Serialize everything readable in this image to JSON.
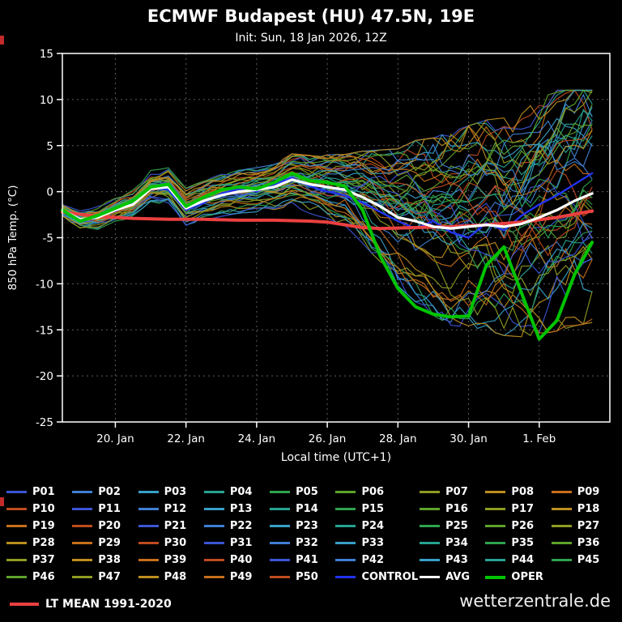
{
  "header": {
    "title": "ECMWF Budapest (HU) 47.5N, 19E",
    "subtitle": "Init: Sun, 18 Jan 2026, 12Z"
  },
  "watermark": "wetterzentrale.de",
  "chart_data": {
    "type": "line",
    "title": "ECMWF Budapest (HU) 47.5N, 19E",
    "subtitle": "Init: Sun, 18 Jan 2026, 12Z",
    "xlabel": "Local time (UTC+1)",
    "ylabel": "850 hPa Temp. (°C)",
    "ylim": [
      -25,
      15
    ],
    "yticks": [
      15,
      10,
      5,
      0,
      -5,
      -10,
      -15,
      -20,
      -25
    ],
    "xlim_days": [
      0,
      15.5
    ],
    "xticks": [
      {
        "t": 1.5,
        "label": "20. Jan"
      },
      {
        "t": 3.5,
        "label": "22. Jan"
      },
      {
        "t": 5.5,
        "label": "24. Jan"
      },
      {
        "t": 7.5,
        "label": "26. Jan"
      },
      {
        "t": 9.5,
        "label": "28. Jan"
      },
      {
        "t": 11.5,
        "label": "30. Jan"
      },
      {
        "t": 13.5,
        "label": "1. Feb"
      }
    ],
    "grid": "dashed",
    "series": {
      "avg": {
        "name": "AVG",
        "color": "#ffffff",
        "width": 3.2,
        "x": [
          0,
          0.5,
          1,
          1.5,
          2,
          2.5,
          3,
          3.5,
          4,
          4.5,
          5,
          5.5,
          6,
          6.5,
          7,
          7.5,
          8,
          8.5,
          9,
          9.5,
          10,
          10.5,
          11,
          11.5,
          12,
          12.5,
          13,
          13.5,
          14,
          14.5,
          15
        ],
        "values": [
          -2,
          -3,
          -2.8,
          -2,
          -1.4,
          0.3,
          0.5,
          -1.8,
          -1,
          -0.4,
          0,
          0.2,
          0.5,
          1.3,
          0.8,
          0.5,
          0.2,
          -0.6,
          -1.6,
          -2.8,
          -3.2,
          -3.8,
          -4,
          -3.8,
          -3.6,
          -3.8,
          -3.5,
          -2.8,
          -2,
          -1,
          -0.2
        ]
      },
      "oper": {
        "name": "OPER",
        "color": "#00c400",
        "width": 4,
        "x": [
          0,
          0.5,
          1,
          1.5,
          2,
          2.5,
          3,
          3.5,
          4,
          4.5,
          5,
          5.5,
          6,
          6.5,
          7,
          7.5,
          8,
          8.5,
          9,
          9.5,
          10,
          10.5,
          11,
          11.5,
          12,
          12.5,
          13,
          13.5,
          14,
          14.5,
          15
        ],
        "values": [
          -2,
          -3.2,
          -2.6,
          -1.8,
          -1,
          0.5,
          0.8,
          -1.6,
          -0.6,
          0.2,
          0.5,
          0.3,
          1,
          2,
          1.2,
          1,
          0.6,
          -2,
          -7,
          -10.5,
          -12.5,
          -13.3,
          -13.6,
          -13.5,
          -8,
          -6,
          -11,
          -16,
          -14,
          -9,
          -5.5
        ]
      },
      "control": {
        "name": "CONTROL",
        "color": "#2233ee",
        "width": 2.4,
        "x": [
          0,
          0.5,
          1,
          1.5,
          2,
          2.5,
          3,
          3.5,
          4,
          4.5,
          5,
          5.5,
          6,
          6.5,
          7,
          7.5,
          8,
          8.5,
          9,
          9.5,
          10,
          10.5,
          11,
          11.5,
          12,
          12.5,
          13,
          13.5,
          14,
          14.5,
          15
        ],
        "values": [
          -2.2,
          -3.1,
          -2.6,
          -2.1,
          -1.2,
          0.4,
          0.2,
          -2,
          -1.2,
          -0.2,
          0.3,
          0,
          0.8,
          1.5,
          0.6,
          0,
          -0.4,
          -1.2,
          -2.2,
          -3.2,
          -4,
          -3.2,
          -4.4,
          -5,
          -3.4,
          -4.2,
          -2.6,
          -1.4,
          -0.4,
          0.8,
          2
        ]
      },
      "lt_mean": {
        "name": "LT MEAN 1991-2020",
        "color": "#ea4040",
        "width": 4,
        "x": [
          0,
          1,
          2,
          3,
          4,
          5,
          6,
          7,
          7.5,
          8,
          8.5,
          9,
          10,
          11,
          12,
          13,
          14,
          15
        ],
        "values": [
          -2.2,
          -2.7,
          -2.9,
          -3,
          -3,
          -3.1,
          -3.1,
          -3.2,
          -3.3,
          -3.6,
          -3.9,
          -4,
          -3.9,
          -3.8,
          -3.6,
          -3.3,
          -2.8,
          -2.1
        ]
      }
    },
    "ensemble": {
      "count": 50,
      "seed": 11,
      "step_days": 0.25,
      "line_width": 1.2,
      "palette": [
        "#3b55d4",
        "#3f7fd4",
        "#38a0c8",
        "#26a392",
        "#2fa34f",
        "#5ea32c",
        "#8f9c22",
        "#bd8e1f",
        "#c76f1b",
        "#bf4b1e"
      ],
      "envelope_x": [
        0,
        3,
        6,
        8,
        9,
        10,
        11,
        12,
        13,
        14,
        15
      ],
      "envelope_spread": [
        0.9,
        1.2,
        1.4,
        2.2,
        3.5,
        5,
        6,
        6.5,
        7,
        7.5,
        8
      ]
    }
  },
  "legend": {
    "members": [
      "P01",
      "P02",
      "P03",
      "P04",
      "P05",
      "P06",
      "P07",
      "P08",
      "P09",
      "P10",
      "P11",
      "P12",
      "P13",
      "P14",
      "P15",
      "P16",
      "P17",
      "P18",
      "P19",
      "P20",
      "P21",
      "P22",
      "P23",
      "P24",
      "P25",
      "P26",
      "P27",
      "P28",
      "P29",
      "P30",
      "P31",
      "P32",
      "P33",
      "P34",
      "P35",
      "P36",
      "P37",
      "P38",
      "P39",
      "P40",
      "P41",
      "P42",
      "P43",
      "P44",
      "P45",
      "P46",
      "P47",
      "P48",
      "P49",
      "P50"
    ],
    "special": [
      {
        "label": "CONTROL",
        "color": "#2233ee",
        "width": 3
      },
      {
        "label": "AVG",
        "color": "#ffffff",
        "width": 3
      },
      {
        "label": "OPER",
        "color": "#00c400",
        "width": 4
      }
    ],
    "lt": {
      "label": "LT MEAN 1991-2020",
      "color": "#ea4040",
      "width": 4
    }
  }
}
